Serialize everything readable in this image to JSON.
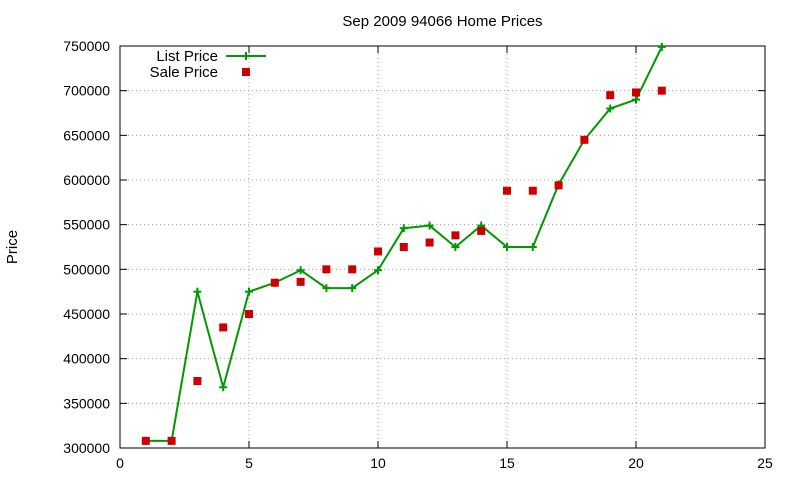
{
  "chart_data": {
    "type": "line",
    "title": "Sep 2009 94066 Home Prices",
    "xlabel": "",
    "ylabel": "Price",
    "xlim": [
      0,
      25
    ],
    "ylim": [
      300000,
      750000
    ],
    "xticks": [
      0,
      5,
      10,
      15,
      20,
      25
    ],
    "yticks": [
      300000,
      350000,
      400000,
      450000,
      500000,
      550000,
      600000,
      650000,
      700000,
      750000
    ],
    "grid": true,
    "legend_position": "top-left",
    "series": [
      {
        "name": "List Price",
        "kind": "line-with-plus-markers",
        "color": "#009900",
        "points": [
          [
            1,
            308000
          ],
          [
            2,
            308000
          ],
          [
            3,
            475000
          ],
          [
            4,
            368000
          ],
          [
            5,
            475000
          ],
          [
            6,
            485000
          ],
          [
            7,
            499000
          ],
          [
            8,
            479000
          ],
          [
            9,
            479000
          ],
          [
            10,
            499000
          ],
          [
            11,
            546000
          ],
          [
            12,
            549000
          ],
          [
            13,
            525000
          ],
          [
            14,
            549000
          ],
          [
            15,
            525000
          ],
          [
            16,
            525000
          ],
          [
            17,
            595000
          ],
          [
            18,
            645000
          ],
          [
            19,
            680000
          ],
          [
            20,
            690000
          ],
          [
            21,
            749000
          ]
        ]
      },
      {
        "name": "Sale Price",
        "kind": "square-markers",
        "color": "#cc0000",
        "points": [
          [
            1,
            308000
          ],
          [
            2,
            308000
          ],
          [
            3,
            375000
          ],
          [
            4,
            435000
          ],
          [
            5,
            450000
          ],
          [
            6,
            485000
          ],
          [
            7,
            486000
          ],
          [
            8,
            500000
          ],
          [
            9,
            500000
          ],
          [
            10,
            520000
          ],
          [
            11,
            525000
          ],
          [
            12,
            530000
          ],
          [
            13,
            538000
          ],
          [
            14,
            543000
          ],
          [
            15,
            588000
          ],
          [
            16,
            588000
          ],
          [
            17,
            594000
          ],
          [
            18,
            645000
          ],
          [
            19,
            695000
          ],
          [
            20,
            698000
          ],
          [
            21,
            700000
          ]
        ]
      }
    ]
  }
}
